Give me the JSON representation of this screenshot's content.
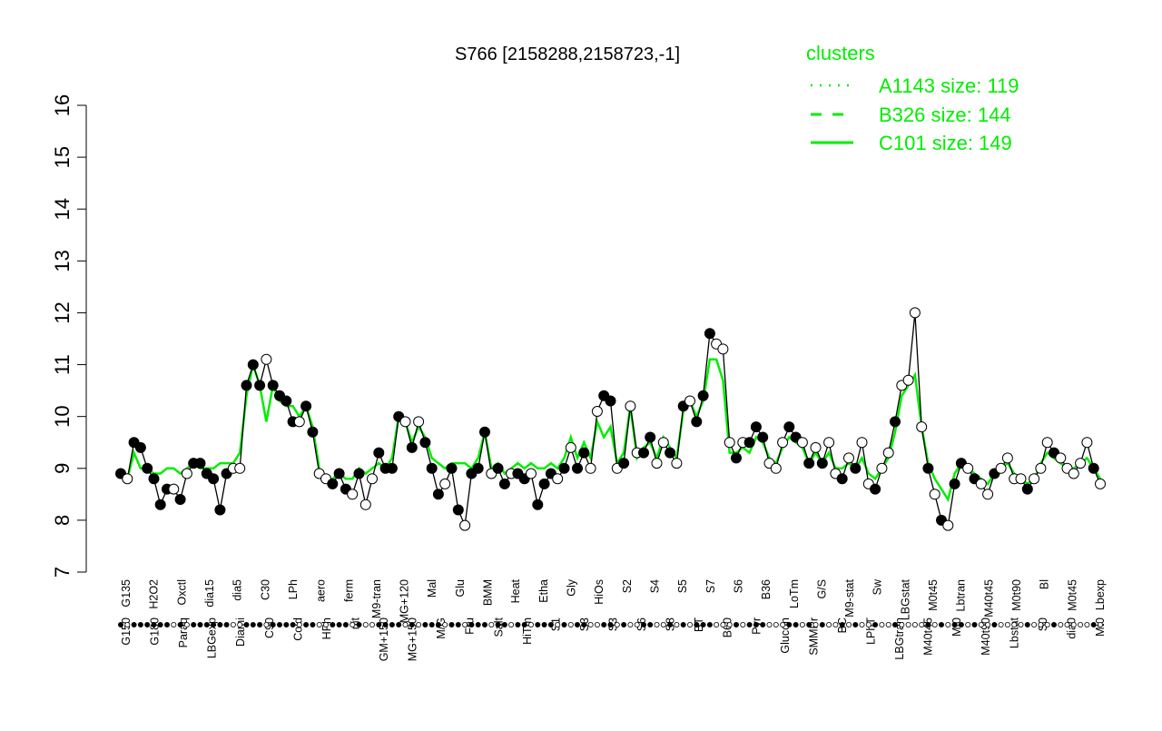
{
  "chart_data": {
    "type": "line",
    "title": "S766 [2158288,2158723,-1]",
    "xlabel": "",
    "ylabel": "",
    "ylim": [
      7,
      16
    ],
    "y_ticks": [
      7,
      8,
      9,
      10,
      11,
      12,
      13,
      14,
      15,
      16
    ],
    "legend": {
      "title": "clusters",
      "placement": "top-right",
      "color": "#00ee00",
      "entries": [
        {
          "label": "A1143 size: 119",
          "style": "dotted"
        },
        {
          "label": "B326 size: 144",
          "style": "dashed"
        },
        {
          "label": "C101 size: 149",
          "style": "solid"
        }
      ]
    },
    "colors": {
      "series": "#000000",
      "cluster": "#00ee00",
      "open_point": "#ffffff"
    },
    "x_labels_top": [
      "G135",
      "H2O2",
      "Oxctl",
      "dia15",
      "dia5",
      "C30",
      "LPh",
      "aero",
      "ferm",
      "M9-tran",
      "MG+120",
      "Mal",
      "Glu",
      "BMM",
      "Heat",
      "Etha",
      "Gly",
      "HiOs",
      "S2",
      "S4",
      "S5",
      "S7",
      "S6",
      "B36",
      "LoTm",
      "G/S",
      "M9-stat",
      "Sw",
      "LBGstat",
      "M0t45",
      "Lbtran",
      "M40t45",
      "M0t90",
      "Bl",
      "M0t45",
      "Lbexp"
    ],
    "x_labels_bottom": [
      "G150",
      "G180",
      "Paraq",
      "LBGexp",
      "Diami",
      "C90",
      "Cold",
      "HPh",
      "nit",
      "GM+150",
      "MG+150",
      "M/G",
      "Fru",
      "Salt",
      "HiTm",
      "S1",
      "S3",
      "S3",
      "S6",
      "S8",
      "BT",
      "B60",
      "Pyr",
      "Glucon",
      "SMMPr",
      "BC",
      "LPhT",
      "LBGtran",
      "M40t45",
      "Mt0",
      "M40t90",
      "Lbstat",
      "S0",
      "dia0",
      "Mt0"
    ],
    "x": [
      1,
      2,
      3,
      4,
      5,
      6,
      7,
      8,
      9,
      10,
      11,
      12,
      13,
      14,
      15,
      16,
      17,
      18,
      19,
      20,
      21,
      22,
      23,
      24,
      25,
      26,
      27,
      28,
      29,
      30,
      31,
      32,
      33,
      34,
      35,
      36,
      37,
      38,
      39,
      40,
      41,
      42,
      43,
      44,
      45,
      46,
      47,
      48,
      49,
      50,
      51,
      52,
      53,
      54,
      55,
      56,
      57,
      58,
      59,
      60,
      61,
      62,
      63,
      64,
      65,
      66,
      67,
      68,
      69,
      70,
      71,
      72,
      73,
      74,
      75,
      76,
      77,
      78,
      79,
      80,
      81,
      82,
      83,
      84,
      85,
      86,
      87,
      88,
      89,
      90,
      91,
      92,
      93,
      94,
      95,
      96,
      97,
      98,
      99,
      100,
      101,
      102,
      103,
      104,
      105,
      106,
      107,
      108,
      109,
      110,
      111,
      112,
      113,
      114,
      115,
      116,
      117,
      118,
      119,
      120,
      121,
      122,
      123,
      124,
      125,
      126,
      127,
      128,
      129,
      130,
      131,
      132,
      133,
      134,
      135,
      136,
      137,
      138,
      139,
      140,
      141,
      142,
      143,
      144,
      145,
      146,
      147,
      148,
      149
    ],
    "series": [
      {
        "values": [
          8.9,
          8.8,
          9.5,
          9.4,
          9.0,
          8.8,
          8.3,
          8.6,
          8.6,
          8.4,
          8.9,
          9.1,
          9.1,
          8.9,
          8.8,
          8.2,
          8.9,
          9.0,
          9.0,
          10.6,
          11.0,
          10.6,
          11.1,
          10.6,
          10.4,
          10.3,
          9.9,
          9.9,
          10.2,
          9.7,
          8.9,
          8.8,
          8.7,
          8.9,
          8.6,
          8.5,
          8.9,
          8.3,
          8.8,
          9.3,
          9.0,
          9.0,
          10.0,
          9.9,
          9.4,
          9.9,
          9.5,
          9.0,
          8.5,
          8.7,
          9.0,
          8.2,
          7.9,
          8.9,
          9.0,
          9.7,
          8.9,
          9.0,
          8.7,
          8.9,
          8.9,
          8.8,
          8.9,
          8.3,
          8.7,
          8.9,
          8.8,
          9.0,
          9.4,
          9.0,
          9.3,
          9.0,
          10.1,
          10.4,
          10.3,
          9.0,
          9.1,
          10.2,
          9.3,
          9.3,
          9.6,
          9.1,
          9.5,
          9.3,
          9.1,
          10.2,
          10.3,
          9.9,
          10.4,
          11.6,
          11.4,
          11.3,
          9.5,
          9.2,
          9.5,
          9.5,
          9.8,
          9.6,
          9.1,
          9.0,
          9.5,
          9.8,
          9.6,
          9.5,
          9.1,
          9.4,
          9.1,
          9.5,
          8.9,
          8.8,
          9.2,
          9.0,
          9.5,
          8.7,
          8.6,
          9.0,
          9.3,
          9.9,
          10.6,
          10.7,
          12.0,
          9.8,
          9.0,
          8.5,
          8.0,
          7.9,
          8.7,
          9.1,
          9.0,
          8.8,
          8.7,
          8.5,
          8.9,
          9.0,
          9.2,
          8.8,
          8.8,
          8.6,
          8.8,
          9.0,
          9.5,
          9.3,
          9.2,
          9.0,
          8.9,
          9.1,
          9.5,
          9.0,
          8.7
        ],
        "cluster_values": [
          8.9,
          8.8,
          9.3,
          9.0,
          9.0,
          8.9,
          8.9,
          9.0,
          9.0,
          8.9,
          9.0,
          9.1,
          9.0,
          9.0,
          9.0,
          9.1,
          9.1,
          9.1,
          9.3,
          10.4,
          11.0,
          10.6,
          9.9,
          10.6,
          10.3,
          10.2,
          10.2,
          10.0,
          10.2,
          9.8,
          9.0,
          8.8,
          8.8,
          8.9,
          8.8,
          8.8,
          9.0,
          8.9,
          9.0,
          9.1,
          9.0,
          9.2,
          10.0,
          9.9,
          9.5,
          9.8,
          9.6,
          9.2,
          9.1,
          9.0,
          9.1,
          9.1,
          9.1,
          9.0,
          9.2,
          9.7,
          9.0,
          9.1,
          8.9,
          9.0,
          9.1,
          9.0,
          9.1,
          9.0,
          9.0,
          9.1,
          9.0,
          9.2,
          9.6,
          9.2,
          9.5,
          9.2,
          9.9,
          9.6,
          9.8,
          9.1,
          9.3,
          10.2,
          9.2,
          9.4,
          9.5,
          9.2,
          9.6,
          9.4,
          9.2,
          10.1,
          10.3,
          10.0,
          10.3,
          11.1,
          11.1,
          10.7,
          9.3,
          9.3,
          9.4,
          9.3,
          9.6,
          9.5,
          9.2,
          9.1,
          9.4,
          9.6,
          9.5,
          9.4,
          9.1,
          9.3,
          9.1,
          9.3,
          9.0,
          9.0,
          9.1,
          9.0,
          9.2,
          8.9,
          8.8,
          9.0,
          9.2,
          9.7,
          10.4,
          10.6,
          10.8,
          9.8,
          9.1,
          8.8,
          8.6,
          8.4,
          8.9,
          9.1,
          9.0,
          8.9,
          8.8,
          8.7,
          8.9,
          9.0,
          9.1,
          8.9,
          8.8,
          8.7,
          8.8,
          9.1,
          9.3,
          9.2,
          9.1,
          9.0,
          9.0,
          9.1,
          9.2,
          9.0,
          8.8
        ]
      }
    ],
    "open_points": [
      2,
      9,
      11,
      18,
      19,
      23,
      28,
      31,
      32,
      36,
      38,
      39,
      44,
      46,
      50,
      53,
      57,
      60,
      63,
      67,
      69,
      72,
      73,
      76,
      78,
      79,
      82,
      83,
      85,
      87,
      91,
      92,
      93,
      95,
      99,
      100,
      101,
      104,
      106,
      108,
      109,
      111,
      113,
      114,
      116,
      117,
      119,
      120,
      121,
      122,
      124,
      126,
      129,
      131,
      132,
      134,
      135,
      136,
      137,
      139,
      140,
      141,
      143,
      144,
      145,
      146,
      147,
      149
    ]
  }
}
